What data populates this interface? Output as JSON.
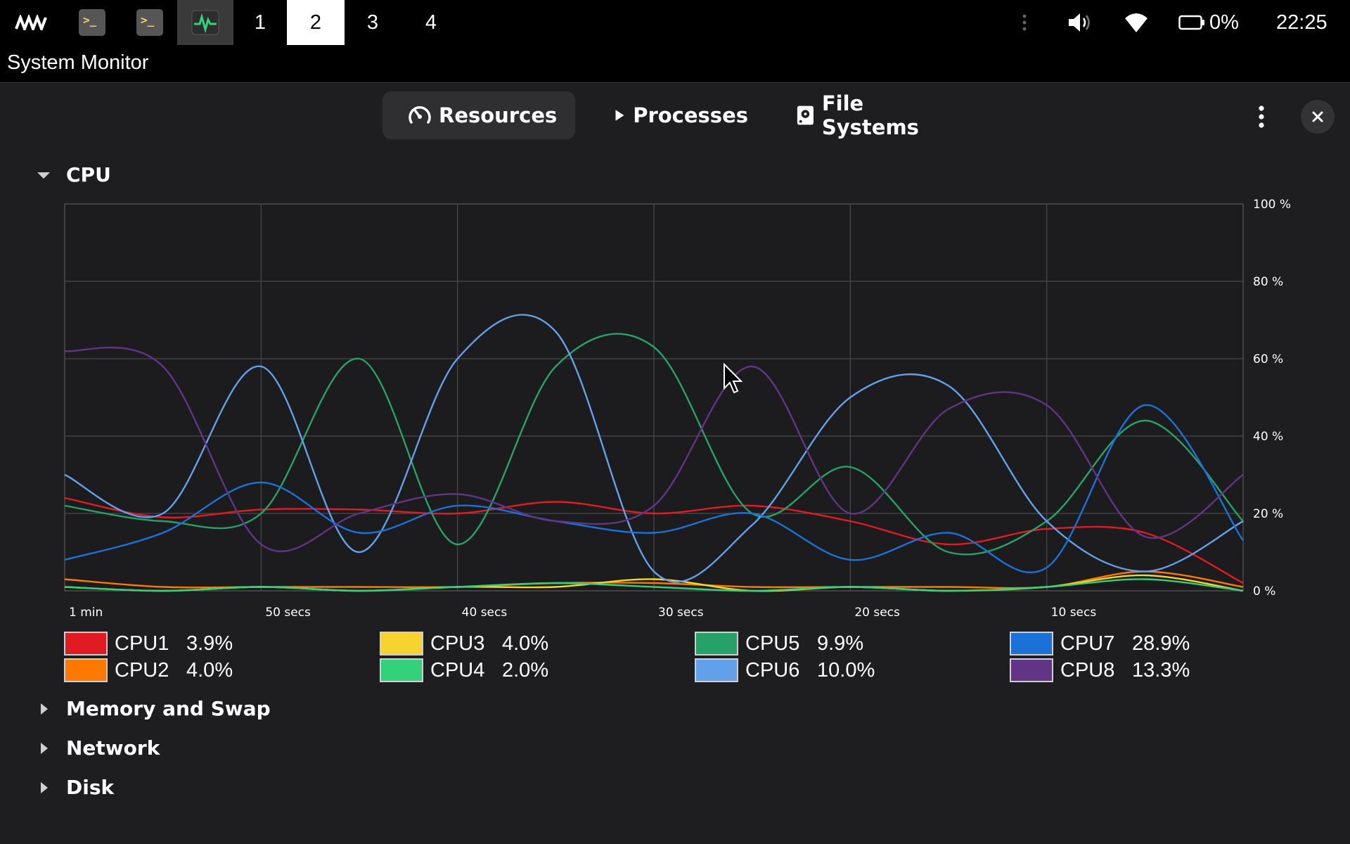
{
  "topbar": {
    "workspaces": [
      "1",
      "2",
      "3",
      "4"
    ],
    "active_workspace": "2",
    "battery": "0%",
    "clock": "22:25"
  },
  "window": {
    "title": "System Monitor"
  },
  "tabs": [
    {
      "label": "Resources",
      "icon": "gauge-icon",
      "active": true
    },
    {
      "label": "Processes",
      "icon": "play-icon",
      "active": false
    },
    {
      "label": "File Systems",
      "icon": "disk-icon",
      "active": false
    }
  ],
  "sections": {
    "cpu": "CPU",
    "memory": "Memory and Swap",
    "network": "Network",
    "disk": "Disk"
  },
  "chart_data": {
    "type": "line",
    "x": [
      60,
      55,
      50,
      45,
      40,
      35,
      30,
      25,
      20,
      15,
      10,
      5,
      0
    ],
    "xlabel": "",
    "ylabel": "",
    "ylim": [
      0,
      100
    ],
    "ytick_labels": [
      "100 %",
      "80 %",
      "60 %",
      "40 %",
      "20 %",
      "0 %"
    ],
    "xtick_labels": [
      {
        "t": 60,
        "label": "1 min"
      },
      {
        "t": 50,
        "label": "50 secs"
      },
      {
        "t": 40,
        "label": "40 secs"
      },
      {
        "t": 30,
        "label": "30 secs"
      },
      {
        "t": 20,
        "label": "20 secs"
      },
      {
        "t": 10,
        "label": "10 secs"
      }
    ],
    "grid": true,
    "series": [
      {
        "name": "CPU1",
        "color": "#e01b24",
        "current": "3.9%",
        "values": [
          24,
          19,
          21,
          21,
          20,
          23,
          20,
          22,
          18,
          12,
          16,
          15,
          2
        ]
      },
      {
        "name": "CPU2",
        "color": "#ff7800",
        "current": "4.0%",
        "values": [
          3,
          1,
          1,
          1,
          1,
          2,
          2,
          1,
          1,
          1,
          1,
          5,
          1
        ]
      },
      {
        "name": "CPU3",
        "color": "#f6d32d",
        "current": "4.0%",
        "values": [
          1,
          0,
          1,
          0,
          1,
          1,
          3,
          0,
          1,
          0,
          1,
          4,
          0
        ]
      },
      {
        "name": "CPU4",
        "color": "#33d17a",
        "current": "2.0%",
        "values": [
          1,
          0,
          1,
          0,
          1,
          2,
          1,
          0,
          1,
          0,
          1,
          3,
          0
        ]
      },
      {
        "name": "CPU5",
        "color": "#26a269",
        "current": "9.9%",
        "values": [
          22,
          18,
          20,
          60,
          12,
          58,
          63,
          20,
          32,
          10,
          18,
          44,
          18
        ]
      },
      {
        "name": "CPU6",
        "color": "#62a0ea",
        "current": "10.0%",
        "values": [
          30,
          20,
          58,
          10,
          60,
          67,
          5,
          17,
          50,
          53,
          18,
          5,
          18
        ]
      },
      {
        "name": "CPU7",
        "color": "#1c71d8",
        "current": "28.9%",
        "values": [
          8,
          15,
          28,
          15,
          22,
          18,
          15,
          20,
          8,
          15,
          6,
          48,
          13
        ]
      },
      {
        "name": "CPU8",
        "color": "#613583",
        "current": "13.3%",
        "values": [
          62,
          58,
          12,
          20,
          25,
          18,
          22,
          58,
          20,
          47,
          48,
          14,
          30
        ]
      }
    ]
  }
}
